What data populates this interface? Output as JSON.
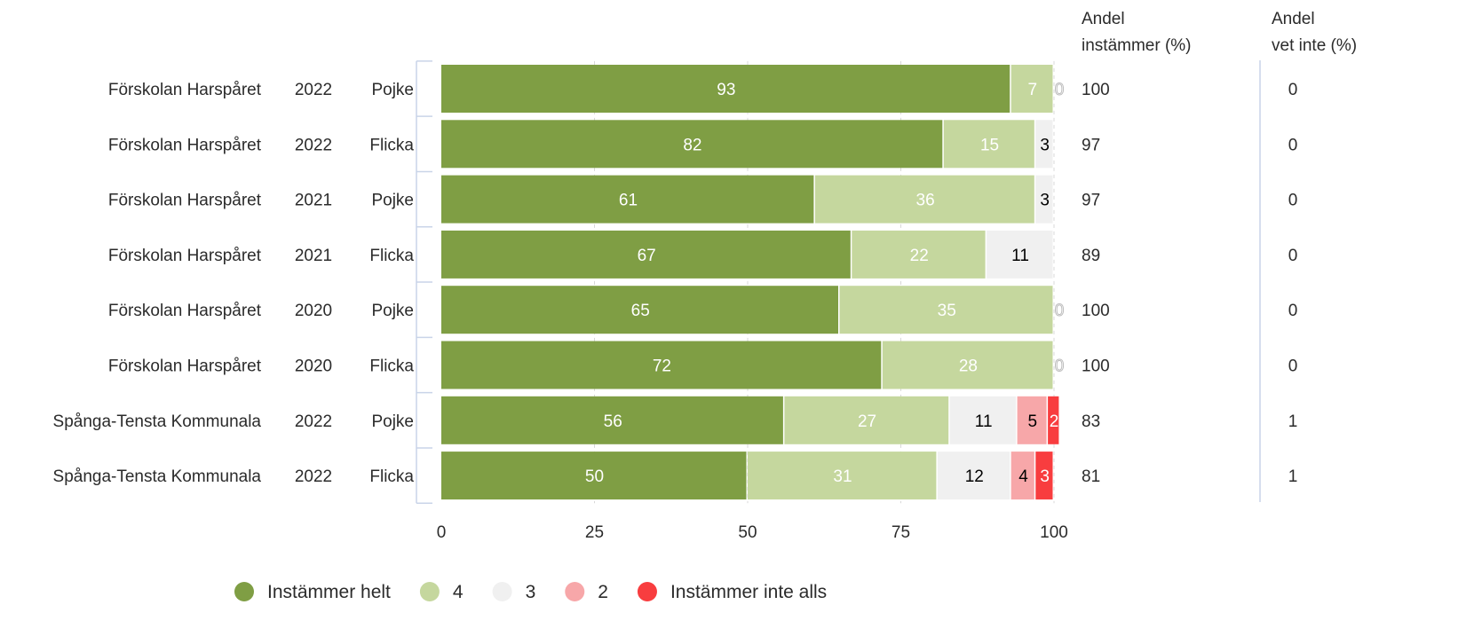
{
  "chart_data": {
    "type": "bar",
    "orientation": "horizontal",
    "stacked": true,
    "title": "",
    "xlabel": "",
    "ylabel": "",
    "xlim": [
      0,
      100
    ],
    "x_ticks": [
      0,
      25,
      50,
      75,
      100
    ],
    "grid": "vertical dashed",
    "legend_position": "bottom",
    "rows": [
      {
        "school": "Förskolan Harspåret",
        "year": "2022",
        "gender": "Pojke"
      },
      {
        "school": "Förskolan Harspåret",
        "year": "2022",
        "gender": "Flicka"
      },
      {
        "school": "Förskolan Harspåret",
        "year": "2021",
        "gender": "Pojke"
      },
      {
        "school": "Förskolan Harspåret",
        "year": "2021",
        "gender": "Flicka"
      },
      {
        "school": "Förskolan Harspåret",
        "year": "2020",
        "gender": "Pojke"
      },
      {
        "school": "Förskolan Harspåret",
        "year": "2020",
        "gender": "Flicka"
      },
      {
        "school": "Spånga-Tensta Kommunala",
        "year": "2022",
        "gender": "Pojke"
      },
      {
        "school": "Spånga-Tensta Kommunala",
        "year": "2022",
        "gender": "Flicka"
      }
    ],
    "series": [
      {
        "name": "Instämmer helt",
        "color": "#7f9e44",
        "label_color": "#ffffff",
        "values": [
          93,
          82,
          61,
          67,
          65,
          72,
          56,
          50
        ]
      },
      {
        "name": "4",
        "color": "#c5d79e",
        "label_color": "#ffffff",
        "values": [
          7,
          15,
          36,
          22,
          35,
          28,
          27,
          31
        ]
      },
      {
        "name": "3",
        "color": "#f0f0f0",
        "label_color": "#000000",
        "values": [
          0,
          3,
          3,
          11,
          0,
          0,
          11,
          12
        ]
      },
      {
        "name": "2",
        "color": "#f7a7a9",
        "label_color": "#000000",
        "values": [
          0,
          0,
          0,
          0,
          0,
          0,
          5,
          4
        ]
      },
      {
        "name": "Instämmer inte alls",
        "color": "#f83d3f",
        "label_color": "#ffffff",
        "values": [
          0,
          0,
          0,
          0,
          0,
          0,
          2,
          3
        ]
      }
    ],
    "columns": [
      {
        "header": [
          "Andel",
          "instämmer (%)"
        ],
        "values": [
          "100",
          "97",
          "97",
          "89",
          "100",
          "100",
          "83",
          "81"
        ]
      },
      {
        "header": [
          "Andel",
          "vet inte (%)"
        ],
        "values": [
          "0",
          "0",
          "0",
          "0",
          "0",
          "0",
          "1",
          "1"
        ]
      }
    ]
  }
}
